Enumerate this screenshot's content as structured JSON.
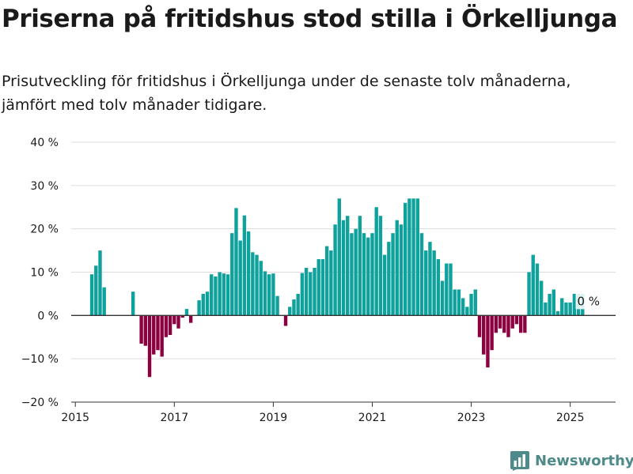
{
  "header": {
    "title": "Priserna på fritidshus stod stilla i Örkelljunga",
    "subtitle": "Prisutveckling för fritidshus i Örkelljunga under de senaste tolv månaderna, jämfört med tolv månader tidigare."
  },
  "branding": {
    "name": "Newsworthy",
    "color": "#4f8a8b",
    "icon": "bar-chart-logo-icon"
  },
  "colors": {
    "positive": "#0fa19c",
    "negative": "#8c0040",
    "grid": "#dcdcdc",
    "zero_line": "#333333"
  },
  "chart_data": {
    "type": "bar",
    "title": "Priserna på fritidshus stod stilla i Örkelljunga",
    "subtitle": "Prisutveckling för fritidshus i Örkelljunga under de senaste tolv månaderna, jämfört med tolv månader tidigare.",
    "xlabel": "",
    "ylabel": "",
    "unit": "%",
    "ylim": [
      -20,
      40
    ],
    "xlim": [
      "2014-12",
      "2025-12"
    ],
    "y_ticks": [
      -20,
      -10,
      0,
      10,
      20,
      30,
      40
    ],
    "y_tick_labels": [
      "−20 %",
      "−10 %",
      "0 %",
      "10 %",
      "20 %",
      "30 %",
      "40 %"
    ],
    "x_ticks": [
      "2015-01",
      "2017-01",
      "2019-01",
      "2021-01",
      "2023-01",
      "2025-01"
    ],
    "x_tick_labels": [
      "2015",
      "2017",
      "2019",
      "2021",
      "2023",
      "2025"
    ],
    "grid": true,
    "legend": "none",
    "annotation": {
      "x": "2025-05",
      "y": 0,
      "text": "0 %"
    },
    "values": [
      {
        "x": "2015-05",
        "y": 9.5
      },
      {
        "x": "2015-06",
        "y": 11.5
      },
      {
        "x": "2015-07",
        "y": 15
      },
      {
        "x": "2015-08",
        "y": 6.5
      },
      {
        "x": "2016-03",
        "y": 5.5
      },
      {
        "x": "2016-05",
        "y": -6.5
      },
      {
        "x": "2016-06",
        "y": -7
      },
      {
        "x": "2016-07",
        "y": -14.2
      },
      {
        "x": "2016-08",
        "y": -9
      },
      {
        "x": "2016-09",
        "y": -8
      },
      {
        "x": "2016-10",
        "y": -9.5
      },
      {
        "x": "2016-11",
        "y": -5
      },
      {
        "x": "2016-12",
        "y": -4.5
      },
      {
        "x": "2017-01",
        "y": -2
      },
      {
        "x": "2017-02",
        "y": -3
      },
      {
        "x": "2017-03",
        "y": -0.5
      },
      {
        "x": "2017-04",
        "y": 1.5
      },
      {
        "x": "2017-05",
        "y": -1.7
      },
      {
        "x": "2017-07",
        "y": 3.5
      },
      {
        "x": "2017-08",
        "y": 5
      },
      {
        "x": "2017-09",
        "y": 5.5
      },
      {
        "x": "2017-10",
        "y": 9.5
      },
      {
        "x": "2017-11",
        "y": 9
      },
      {
        "x": "2017-12",
        "y": 10
      },
      {
        "x": "2018-01",
        "y": 9.7
      },
      {
        "x": "2018-02",
        "y": 9.5
      },
      {
        "x": "2018-03",
        "y": 19
      },
      {
        "x": "2018-04",
        "y": 24.8
      },
      {
        "x": "2018-05",
        "y": 17.3
      },
      {
        "x": "2018-06",
        "y": 23.1
      },
      {
        "x": "2018-07",
        "y": 19.4
      },
      {
        "x": "2018-08",
        "y": 14.6
      },
      {
        "x": "2018-09",
        "y": 14
      },
      {
        "x": "2018-10",
        "y": 12.6
      },
      {
        "x": "2018-11",
        "y": 10.2
      },
      {
        "x": "2018-12",
        "y": 9.5
      },
      {
        "x": "2019-01",
        "y": 9.7
      },
      {
        "x": "2019-02",
        "y": 4.5
      },
      {
        "x": "2019-04",
        "y": -2.4
      },
      {
        "x": "2019-05",
        "y": 2
      },
      {
        "x": "2019-06",
        "y": 3.7
      },
      {
        "x": "2019-07",
        "y": 5
      },
      {
        "x": "2019-08",
        "y": 9.8
      },
      {
        "x": "2019-09",
        "y": 11
      },
      {
        "x": "2019-10",
        "y": 10
      },
      {
        "x": "2019-11",
        "y": 11
      },
      {
        "x": "2019-12",
        "y": 13
      },
      {
        "x": "2020-01",
        "y": 13
      },
      {
        "x": "2020-02",
        "y": 16
      },
      {
        "x": "2020-03",
        "y": 15
      },
      {
        "x": "2020-04",
        "y": 21
      },
      {
        "x": "2020-05",
        "y": 27
      },
      {
        "x": "2020-06",
        "y": 22
      },
      {
        "x": "2020-07",
        "y": 23
      },
      {
        "x": "2020-08",
        "y": 19
      },
      {
        "x": "2020-09",
        "y": 20
      },
      {
        "x": "2020-10",
        "y": 23
      },
      {
        "x": "2020-11",
        "y": 19
      },
      {
        "x": "2020-12",
        "y": 18
      },
      {
        "x": "2021-01",
        "y": 19
      },
      {
        "x": "2021-02",
        "y": 25
      },
      {
        "x": "2021-03",
        "y": 23
      },
      {
        "x": "2021-04",
        "y": 14
      },
      {
        "x": "2021-05",
        "y": 17
      },
      {
        "x": "2021-06",
        "y": 19
      },
      {
        "x": "2021-07",
        "y": 22
      },
      {
        "x": "2021-08",
        "y": 21
      },
      {
        "x": "2021-09",
        "y": 26
      },
      {
        "x": "2021-10",
        "y": 27
      },
      {
        "x": "2021-11",
        "y": 27
      },
      {
        "x": "2021-12",
        "y": 27
      },
      {
        "x": "2022-01",
        "y": 19
      },
      {
        "x": "2022-02",
        "y": 15
      },
      {
        "x": "2022-03",
        "y": 17
      },
      {
        "x": "2022-04",
        "y": 15
      },
      {
        "x": "2022-05",
        "y": 13
      },
      {
        "x": "2022-06",
        "y": 8
      },
      {
        "x": "2022-07",
        "y": 12
      },
      {
        "x": "2022-08",
        "y": 12
      },
      {
        "x": "2022-09",
        "y": 6
      },
      {
        "x": "2022-10",
        "y": 6
      },
      {
        "x": "2022-11",
        "y": 4
      },
      {
        "x": "2022-12",
        "y": 2
      },
      {
        "x": "2023-01",
        "y": 5
      },
      {
        "x": "2023-02",
        "y": 6
      },
      {
        "x": "2023-03",
        "y": -5
      },
      {
        "x": "2023-04",
        "y": -9
      },
      {
        "x": "2023-05",
        "y": -12
      },
      {
        "x": "2023-06",
        "y": -8
      },
      {
        "x": "2023-07",
        "y": -4
      },
      {
        "x": "2023-08",
        "y": -3
      },
      {
        "x": "2023-09",
        "y": -4
      },
      {
        "x": "2023-10",
        "y": -5
      },
      {
        "x": "2023-11",
        "y": -3
      },
      {
        "x": "2023-12",
        "y": -2
      },
      {
        "x": "2024-01",
        "y": -4
      },
      {
        "x": "2024-02",
        "y": -4
      },
      {
        "x": "2024-03",
        "y": 10
      },
      {
        "x": "2024-04",
        "y": 14
      },
      {
        "x": "2024-05",
        "y": 12
      },
      {
        "x": "2024-06",
        "y": 8
      },
      {
        "x": "2024-07",
        "y": 3
      },
      {
        "x": "2024-08",
        "y": 5
      },
      {
        "x": "2024-09",
        "y": 6
      },
      {
        "x": "2024-10",
        "y": 1
      },
      {
        "x": "2024-11",
        "y": 4
      },
      {
        "x": "2024-12",
        "y": 3
      },
      {
        "x": "2025-01",
        "y": 3
      },
      {
        "x": "2025-02",
        "y": 5
      },
      {
        "x": "2025-03",
        "y": 5
      },
      {
        "x": "2025-04",
        "y": 5
      },
      {
        "x": "2025-05",
        "y": 0
      }
    ]
  }
}
